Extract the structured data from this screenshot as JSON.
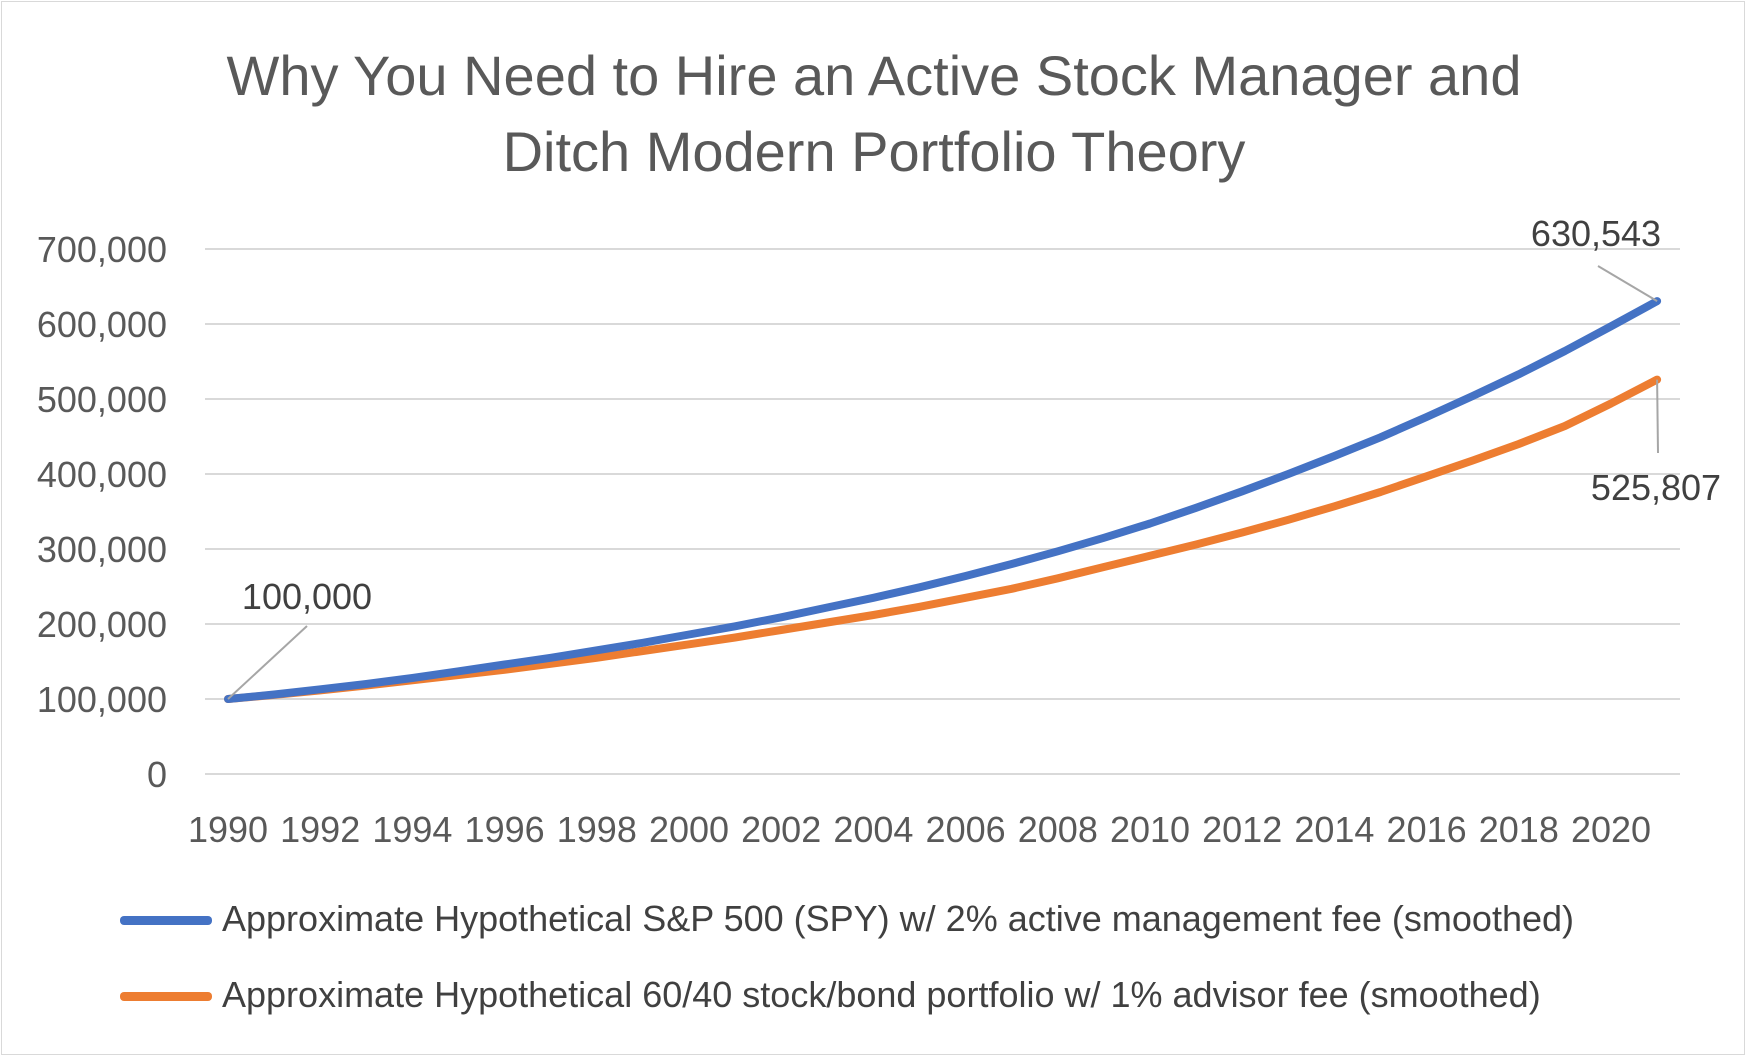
{
  "chart_data": {
    "type": "line",
    "title_lines": [
      "Why You Need to Hire an Active Stock Manager and",
      "Ditch Modern Portfolio Theory"
    ],
    "x": [
      1990,
      1991,
      1992,
      1993,
      1994,
      1995,
      1996,
      1997,
      1998,
      1999,
      2000,
      2001,
      2002,
      2003,
      2004,
      2005,
      2006,
      2007,
      2008,
      2009,
      2010,
      2011,
      2012,
      2013,
      2014,
      2015,
      2016,
      2017,
      2018,
      2019,
      2020,
      2021
    ],
    "x_tick_labels": [
      "1990",
      "1992",
      "1994",
      "1996",
      "1998",
      "2000",
      "2002",
      "2004",
      "2006",
      "2008",
      "2010",
      "2012",
      "2014",
      "2016",
      "2018",
      "2020"
    ],
    "y_tick_labels": [
      "0",
      "100,000",
      "200,000",
      "300,000",
      "400,000",
      "500,000",
      "600,000",
      "700,000"
    ],
    "ylim": [
      0,
      700000
    ],
    "grid": true,
    "legend_position": "bottom",
    "series": [
      {
        "name": "Approximate Hypothetical S&P 500 (SPY) w/ 2% active management fee (smoothed)",
        "color": "#4472c4",
        "values": [
          100000,
          106000,
          113000,
          120000,
          128000,
          137000,
          146000,
          155000,
          165000,
          175000,
          186000,
          197000,
          209000,
          222000,
          235000,
          249000,
          264000,
          280000,
          297000,
          315000,
          334000,
          355000,
          377000,
          400000,
          424000,
          449000,
          476000,
          504000,
          533000,
          564000,
          597000,
          630543
        ]
      },
      {
        "name": "Approximate Hypothetical 60/40 stock/bond portfolio w/ 1% advisor fee (smoothed)",
        "color": "#ed7d31",
        "values": [
          100000,
          105500,
          111500,
          118000,
          125000,
          132000,
          139000,
          147000,
          155000,
          164000,
          173000,
          182000,
          192000,
          202000,
          212000,
          223000,
          235000,
          247000,
          261000,
          276000,
          291000,
          306000,
          322000,
          339000,
          357000,
          376000,
          397000,
          418000,
          440000,
          464000,
          494000,
          525807
        ]
      }
    ],
    "annotations": [
      {
        "text": "100,000",
        "x": 1990,
        "y": 100000
      },
      {
        "text": "630,543",
        "x": 2021,
        "y": 630543
      },
      {
        "text": "525,807",
        "x": 2021,
        "y": 525807
      }
    ],
    "axis_color": "#d9d9d9",
    "text_color": "#595959"
  }
}
